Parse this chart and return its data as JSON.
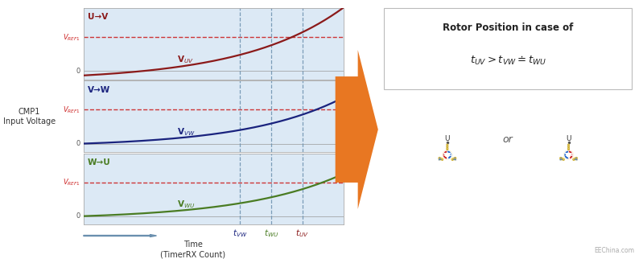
{
  "bg_color": "#dce9f5",
  "curve_color_uv": "#8b1a1a",
  "curve_color_vw": "#1a237e",
  "curve_color_wu": "#4a7c23",
  "vref_color": "#cc2222",
  "dashed_line_color": "#6a8fae",
  "ylabel_text": "CMP1\nInput Voltage",
  "xlabel_text": "Time\n(TimerRX Count)",
  "panel1_title": "U→V",
  "panel2_title": "V→W",
  "panel3_title": "W→U",
  "t_vw": 0.6,
  "t_wu": 0.72,
  "t_uv": 0.84,
  "rotor_title_line1": "Rotor Position in case of",
  "arrow_color": "#e87722",
  "watermark": "EEChina.com",
  "coil_color": "#f0d878",
  "coil_edge": "#c8a828",
  "north_color": "#cc2222",
  "south_color": "#2266cc"
}
